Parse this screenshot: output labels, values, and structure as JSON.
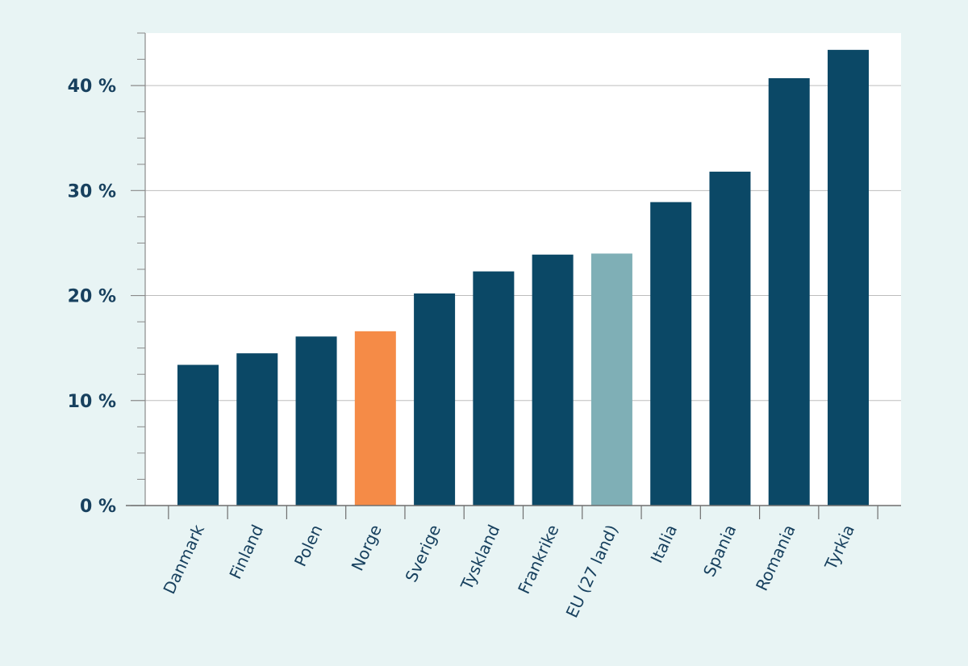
{
  "chart_data": {
    "type": "bar",
    "title": "",
    "xlabel": "",
    "ylabel": "",
    "categories": [
      "Danmark",
      "Finland",
      "Polen",
      "Norge",
      "Sverige",
      "Tyskland",
      "Frankrike",
      "EU (27 land)",
      "Italia",
      "Spania",
      "Romania",
      "Tyrkia"
    ],
    "values": [
      13.4,
      14.5,
      16.1,
      16.6,
      20.2,
      22.3,
      23.9,
      24.0,
      28.9,
      31.8,
      40.7,
      43.4
    ],
    "ylim": [
      0,
      45
    ],
    "yticks": [
      0,
      10,
      20,
      30,
      40
    ],
    "ytick_labels": [
      "0 %",
      "10 %",
      "20 %",
      "30 %",
      "40 %"
    ],
    "grid": true,
    "colors": {
      "default": "#0b4866",
      "highlight": "#f58b47",
      "eu": "#7fafb6",
      "background": "#e8f4f4",
      "plot_background": "#ffffff",
      "text": "#17405e"
    },
    "highlight_categories": {
      "Norge": "highlight",
      "EU (27 land)": "eu"
    }
  }
}
